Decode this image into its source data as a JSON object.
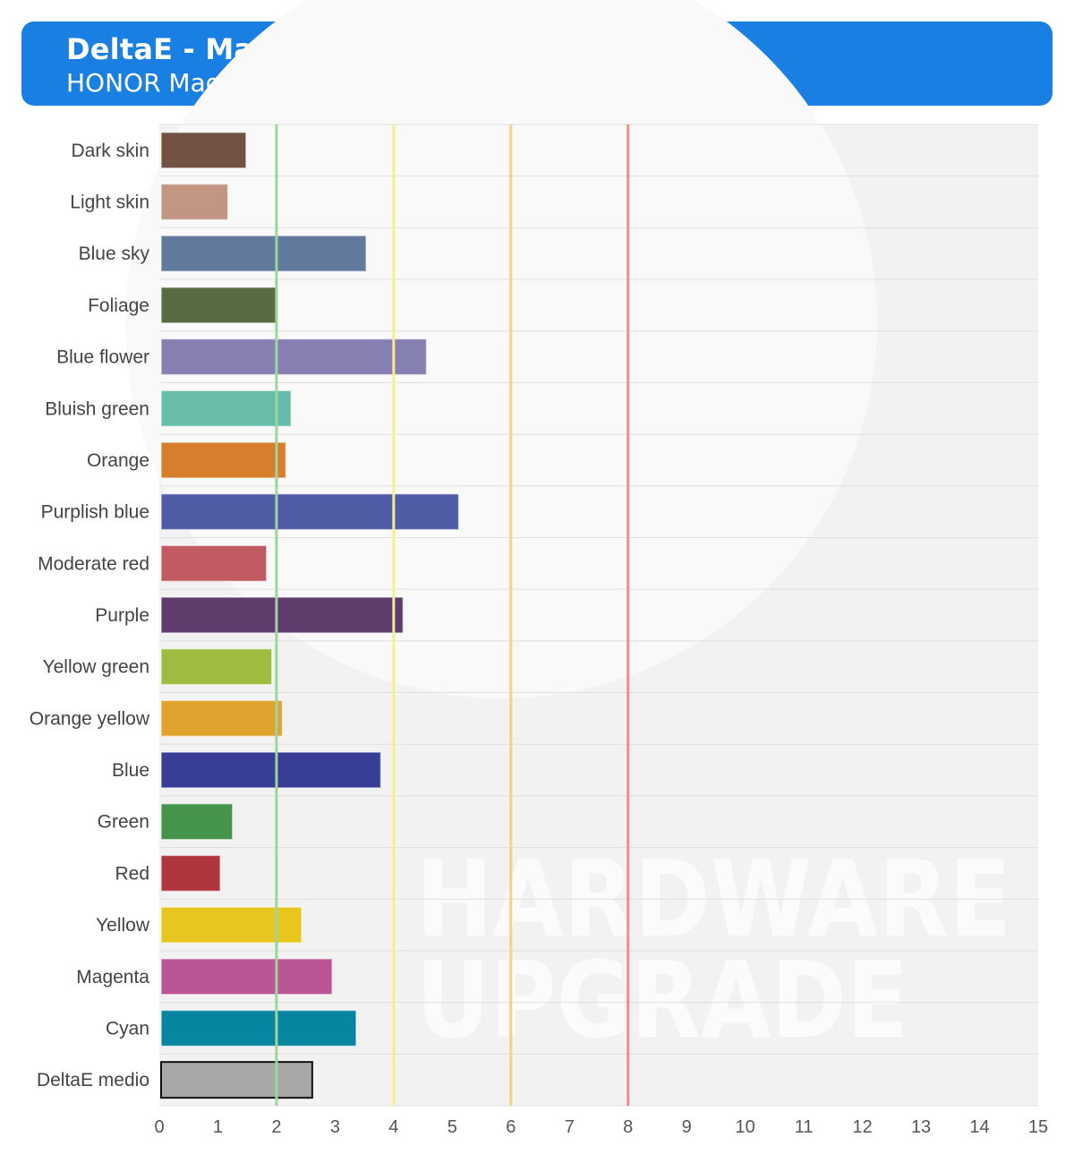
{
  "header": {
    "title": "DeltaE - Macbeth Color Checker",
    "subtitle": "HONOR Magic5 Pro - Intensa"
  },
  "watermark": [
    "HARDWARE",
    "UPGRADE"
  ],
  "chart_data": {
    "type": "bar",
    "orientation": "horizontal",
    "title": "DeltaE - Macbeth Color Checker",
    "subtitle": "HONOR Magic5 Pro - Intensa",
    "categories": [
      "Dark skin",
      "Light skin",
      "Blue sky",
      "Foliage",
      "Blue flower",
      "Bluish green",
      "Orange",
      "Purplish blue",
      "Moderate red",
      "Purple",
      "Yellow green",
      "Orange yellow",
      "Blue",
      "Green",
      "Red",
      "Yellow",
      "Magenta",
      "Cyan",
      "DeltaE medio"
    ],
    "values": [
      1.48,
      1.17,
      3.53,
      1.99,
      4.56,
      2.25,
      2.16,
      5.11,
      1.83,
      4.16,
      1.92,
      2.1,
      3.78,
      1.25,
      1.04,
      2.43,
      2.95,
      3.36,
      2.61
    ],
    "bar_colors": [
      "#735244",
      "#c29682",
      "#627a9d",
      "#576c43",
      "#8580b1",
      "#67bdaa",
      "#d67e2c",
      "#505ba6",
      "#c15a63",
      "#5e3c6c",
      "#9dbc40",
      "#e0a32e",
      "#383d96",
      "#469449",
      "#af363c",
      "#e7c71f",
      "#bb5695",
      "#0885a1",
      "#a8a8a8"
    ],
    "xlim": [
      0,
      15
    ],
    "xticks": [
      0,
      1,
      2,
      3,
      4,
      5,
      6,
      7,
      8,
      9,
      10,
      11,
      12,
      13,
      14,
      15
    ],
    "reference_lines": [
      {
        "x": 2,
        "color": "#9fd49a"
      },
      {
        "x": 4,
        "color": "#f5ee93"
      },
      {
        "x": 6,
        "color": "#f5d385"
      },
      {
        "x": 8,
        "color": "#f28b8b"
      }
    ],
    "grid": true
  }
}
